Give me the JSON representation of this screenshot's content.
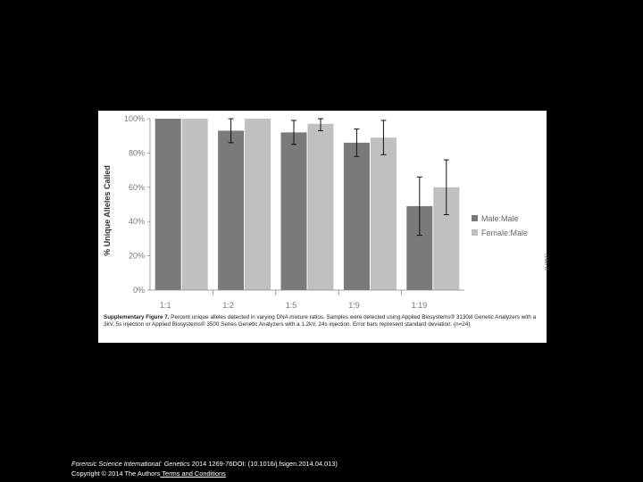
{
  "chart_data": {
    "type": "bar",
    "categories": [
      "1:1",
      "1:2",
      "1:5",
      "1:9",
      "1:19"
    ],
    "series": [
      {
        "name": "Male:Male",
        "color": "#7a7a7a",
        "values": [
          100,
          93,
          92,
          86,
          49
        ],
        "error": [
          0,
          7,
          7,
          8,
          17
        ]
      },
      {
        "name": "Female:Male",
        "color": "#c0c0c0",
        "values": [
          100,
          100,
          97,
          89,
          60
        ],
        "error": [
          0,
          0,
          4,
          10,
          16
        ]
      }
    ],
    "ylabel": "% Unique Alleles Called",
    "xlabel": "",
    "ylim": [
      0,
      100
    ],
    "yticks": [
      "0%",
      "20%",
      "40%",
      "60%",
      "80%",
      "100%"
    ],
    "grid": false,
    "legend": "right"
  },
  "caption": {
    "label": "Supplementary Figure 7.",
    "text": " Percent unique alleles detected in varying DNA mixture ratios. Samples were detected using Applied Biosystems® 3130xl Genetic Analyzers with a 3kV, 5s injection or Applied Biosystems® 3500 Series Genetic Analyzers with a 1.2kV, 24s injection. Error bars represent standard deviation. (n=24)"
  },
  "side_id": "1143927",
  "footer": {
    "journal": "Forensic Science International: Genetics",
    "citation": " 2014 1269-76DOI: (10.1016/j.fsigen.2014.04.013)",
    "copyright": "Copyright © 2014 The Authors",
    "link": " Terms and Conditions"
  }
}
